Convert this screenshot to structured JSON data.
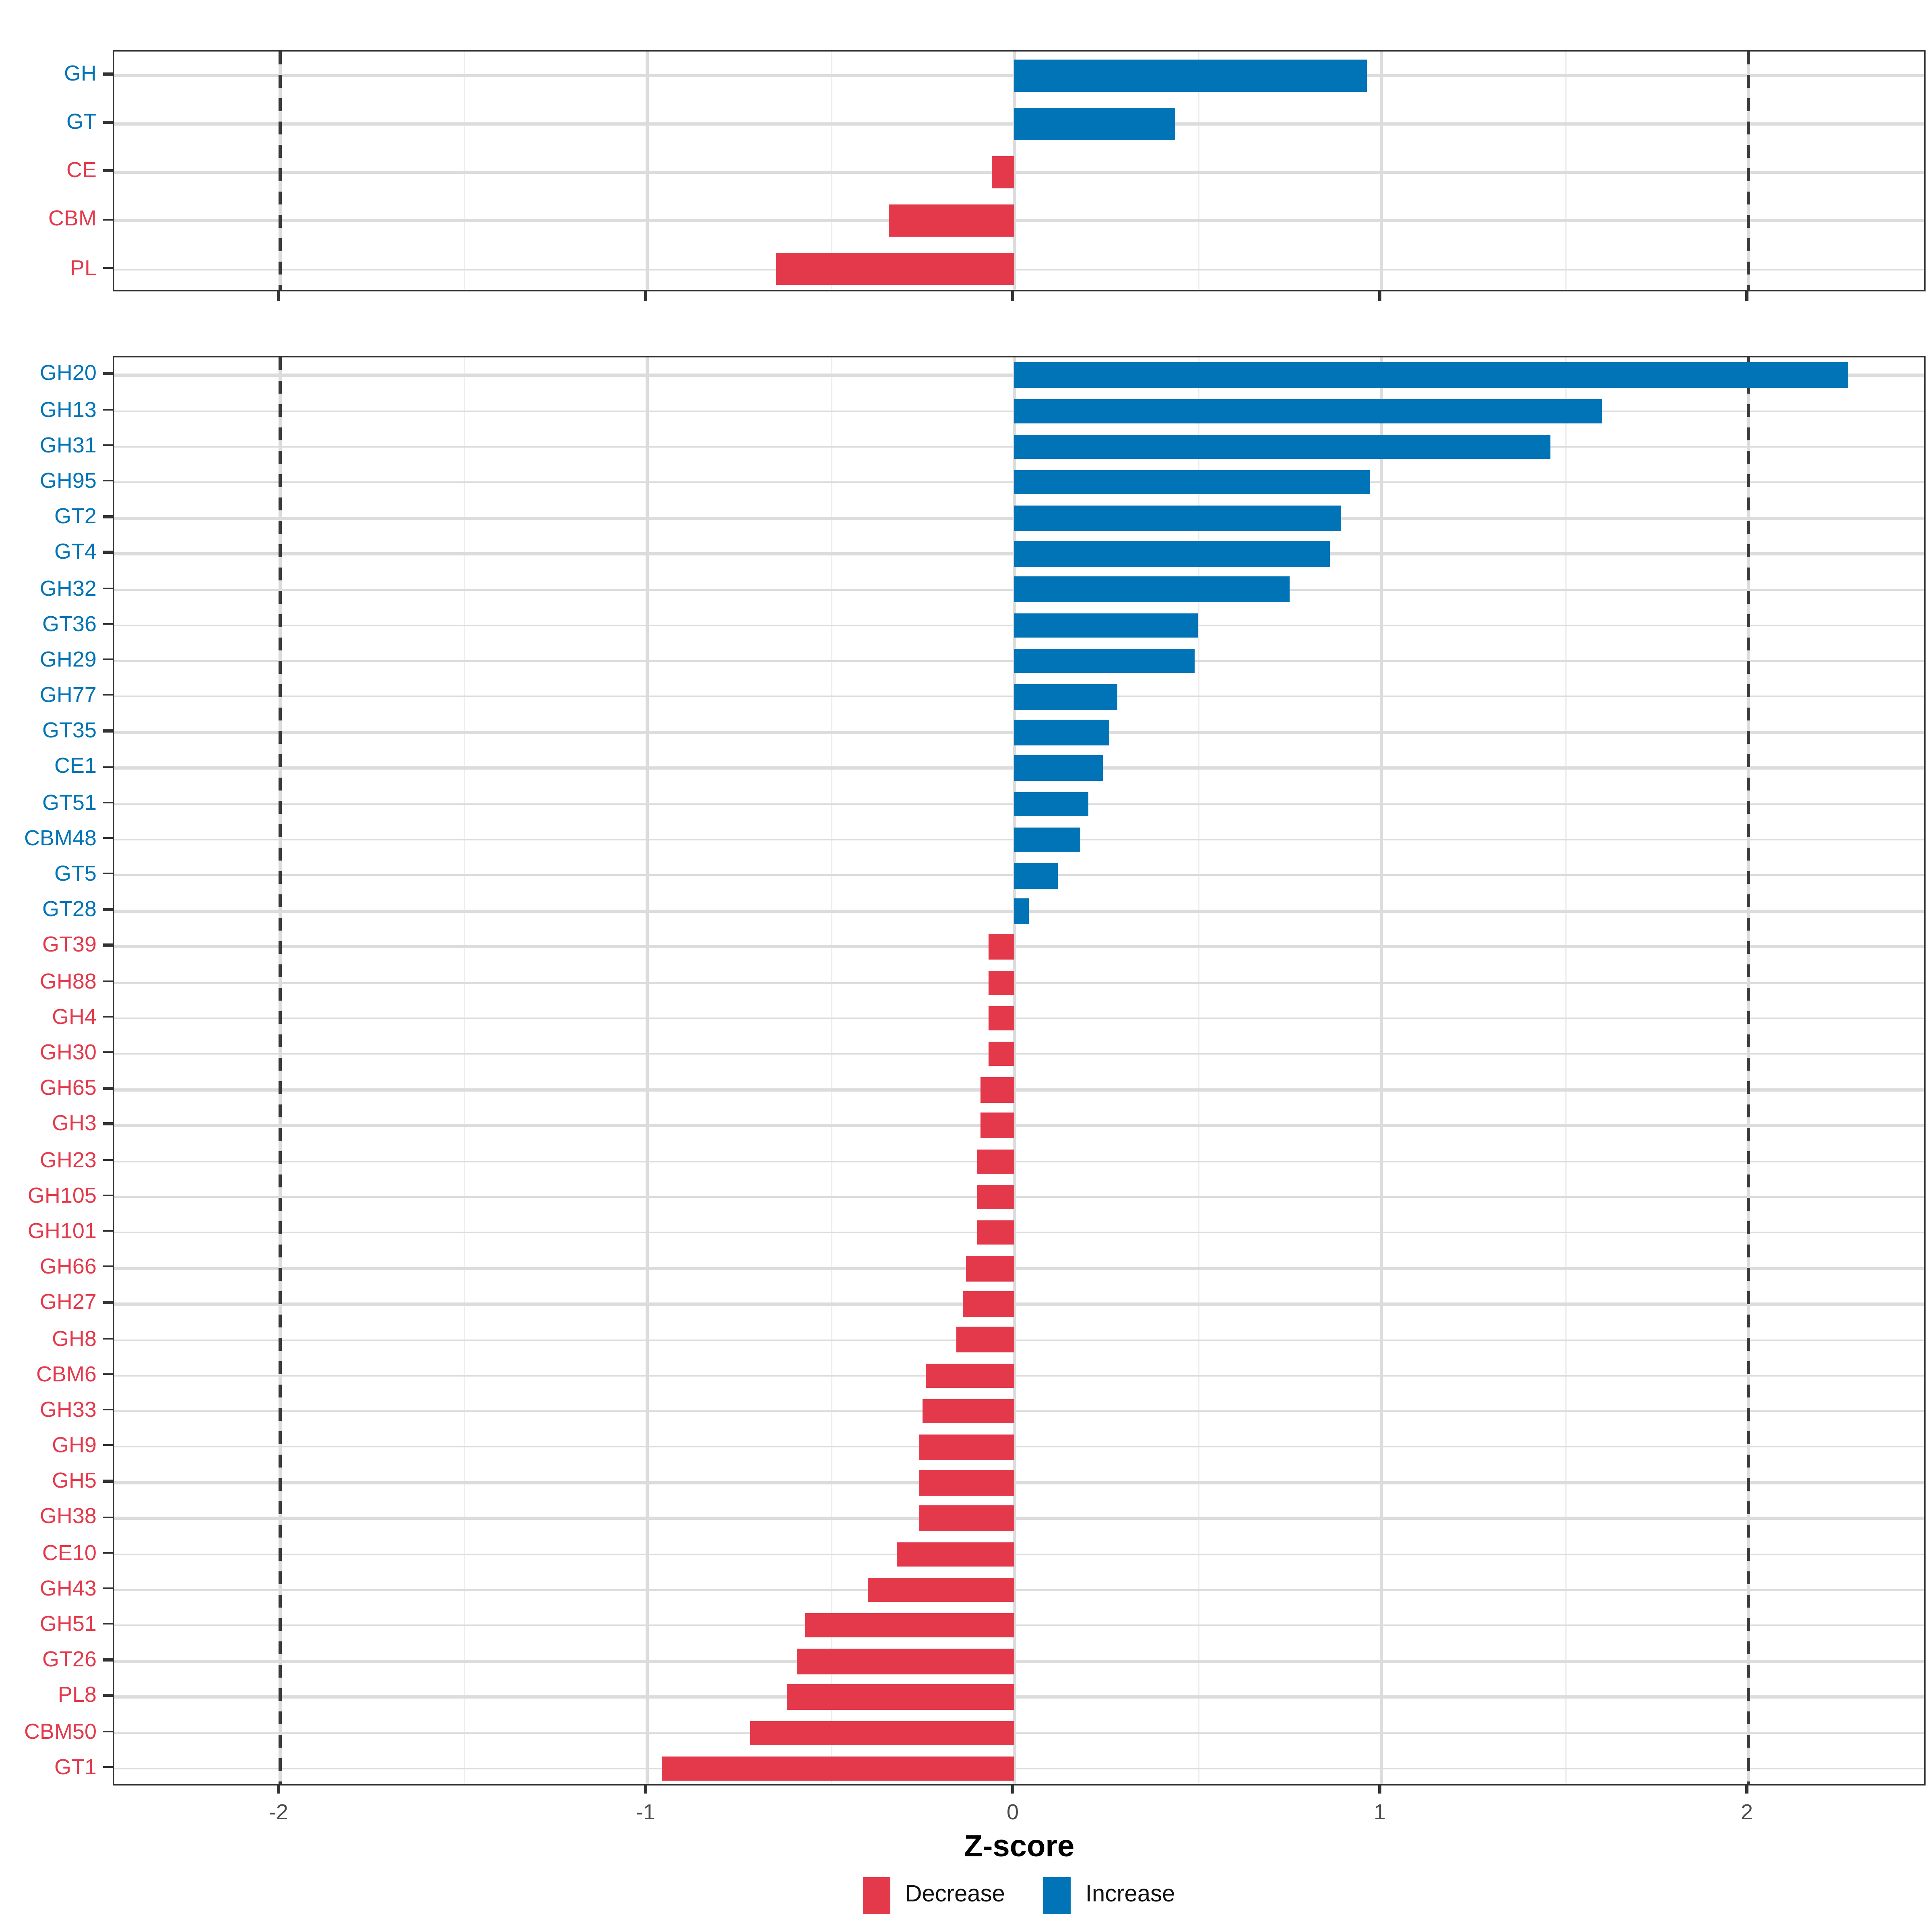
{
  "chart_data": {
    "type": "bar",
    "orientation": "horizontal",
    "title": "",
    "xlabel": "Z-score",
    "x_ticks": [
      -2,
      -1,
      0,
      1,
      2
    ],
    "x_minor_ticks": [
      -1.5,
      -0.5,
      0.5,
      1.5
    ],
    "xlim": [
      -2.45,
      2.49
    ],
    "grid": true,
    "reference_lines_dashed": [
      -2,
      2
    ],
    "legend_position": "bottom",
    "legend": [
      {
        "label": "Decrease",
        "color": "#e4394b"
      },
      {
        "label": "Increase",
        "color": "#0074b6"
      }
    ],
    "panels": [
      {
        "name": "family-summary",
        "rows": [
          {
            "label": "GH",
            "value": 0.96,
            "direction": "increase"
          },
          {
            "label": "GT",
            "value": 0.44,
            "direction": "increase"
          },
          {
            "label": "CE",
            "value": -0.06,
            "direction": "decrease"
          },
          {
            "label": "CBM",
            "value": -0.34,
            "direction": "decrease"
          },
          {
            "label": "PL",
            "value": -0.65,
            "direction": "decrease"
          }
        ]
      },
      {
        "name": "subfamily-detail",
        "rows": [
          {
            "label": "GH20",
            "value": 2.27,
            "direction": "increase"
          },
          {
            "label": "GH13",
            "value": 1.6,
            "direction": "increase"
          },
          {
            "label": "GH31",
            "value": 1.46,
            "direction": "increase"
          },
          {
            "label": "GH95",
            "value": 0.97,
            "direction": "increase"
          },
          {
            "label": "GT2",
            "value": 0.89,
            "direction": "increase"
          },
          {
            "label": "GT4",
            "value": 0.86,
            "direction": "increase"
          },
          {
            "label": "GH32",
            "value": 0.75,
            "direction": "increase"
          },
          {
            "label": "GT36",
            "value": 0.5,
            "direction": "increase"
          },
          {
            "label": "GH29",
            "value": 0.49,
            "direction": "increase"
          },
          {
            "label": "GH77",
            "value": 0.28,
            "direction": "increase"
          },
          {
            "label": "GT35",
            "value": 0.26,
            "direction": "increase"
          },
          {
            "label": "CE1",
            "value": 0.24,
            "direction": "increase"
          },
          {
            "label": "GT51",
            "value": 0.2,
            "direction": "increase"
          },
          {
            "label": "CBM48",
            "value": 0.18,
            "direction": "increase"
          },
          {
            "label": "GT5",
            "value": 0.12,
            "direction": "increase"
          },
          {
            "label": "GT28",
            "value": 0.04,
            "direction": "increase"
          },
          {
            "label": "GT39",
            "value": -0.07,
            "direction": "decrease"
          },
          {
            "label": "GH88",
            "value": -0.07,
            "direction": "decrease"
          },
          {
            "label": "GH4",
            "value": -0.07,
            "direction": "decrease"
          },
          {
            "label": "GH30",
            "value": -0.07,
            "direction": "decrease"
          },
          {
            "label": "GH65",
            "value": -0.09,
            "direction": "decrease"
          },
          {
            "label": "GH3",
            "value": -0.09,
            "direction": "decrease"
          },
          {
            "label": "GH23",
            "value": -0.1,
            "direction": "decrease"
          },
          {
            "label": "GH105",
            "value": -0.1,
            "direction": "decrease"
          },
          {
            "label": "GH101",
            "value": -0.1,
            "direction": "decrease"
          },
          {
            "label": "GH66",
            "value": -0.13,
            "direction": "decrease"
          },
          {
            "label": "GH27",
            "value": -0.14,
            "direction": "decrease"
          },
          {
            "label": "GH8",
            "value": -0.16,
            "direction": "decrease"
          },
          {
            "label": "CBM6",
            "value": -0.24,
            "direction": "decrease"
          },
          {
            "label": "GH33",
            "value": -0.25,
            "direction": "decrease"
          },
          {
            "label": "GH9",
            "value": -0.26,
            "direction": "decrease"
          },
          {
            "label": "GH5",
            "value": -0.26,
            "direction": "decrease"
          },
          {
            "label": "GH38",
            "value": -0.26,
            "direction": "decrease"
          },
          {
            "label": "CE10",
            "value": -0.32,
            "direction": "decrease"
          },
          {
            "label": "GH43",
            "value": -0.4,
            "direction": "decrease"
          },
          {
            "label": "GH51",
            "value": -0.57,
            "direction": "decrease"
          },
          {
            "label": "GT26",
            "value": -0.59,
            "direction": "decrease"
          },
          {
            "label": "PL8",
            "value": -0.62,
            "direction": "decrease"
          },
          {
            "label": "CBM50",
            "value": -0.72,
            "direction": "decrease"
          },
          {
            "label": "GT1",
            "value": -0.96,
            "direction": "decrease"
          }
        ]
      }
    ]
  },
  "colors": {
    "increase": "#0074b6",
    "decrease": "#e4394b",
    "grid_major": "#dcdcdc",
    "grid_minor": "#ededed",
    "panel_border": "#2e2e2e",
    "reference_line": "#3a3a3a",
    "axis_tick": "#333333",
    "axis_tick_label": "#4a4a4a",
    "background": "#ffffff"
  }
}
